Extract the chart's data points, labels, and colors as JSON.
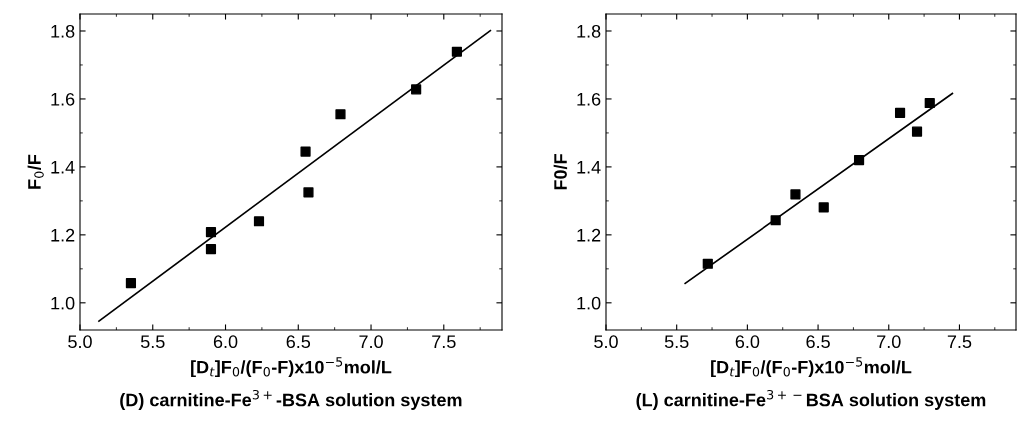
{
  "chart_data": [
    {
      "type": "scatter",
      "xlabel": "[D$_{t}$]F$_{0}$/(F$_{0}$-F)x10$^{−5}$mol/L",
      "ylabel": "F$_{0}$/F",
      "marker": "square",
      "xlim": [
        5.0,
        7.9
      ],
      "xticks": [
        {
          "value": 5,
          "label": "5.0"
        },
        5.5,
        {
          "value": 6,
          "label": "6.0"
        },
        6.5,
        {
          "value": 7,
          "label": "7.0"
        },
        7.5
      ],
      "ylim": [
        0.92,
        1.85
      ],
      "yticks": [
        {
          "value": 1,
          "label": "1.0"
        },
        1.2,
        1.4,
        1.6,
        1.8
      ],
      "annotations": [
        "(D) carnitine-Fe$^{3+}$-BSA solution system"
      ],
      "series": [
        {
          "color": "#000000",
          "x": [
            5.35,
            5.9,
            5.9,
            6.23,
            6.55,
            6.57,
            6.79,
            7.31,
            7.59
          ],
          "values": [
            1.058,
            1.208,
            1.158,
            1.24,
            1.445,
            1.325,
            1.555,
            1.628,
            1.739
          ]
        },
        {
          "type": "line",
          "color": "#000000",
          "marker": "none",
          "line_style": "solid",
          "x": [
            5.13,
            7.82
          ],
          "values": [
            0.946,
            1.801
          ]
        }
      ]
    },
    {
      "type": "scatter",
      "xlabel": "[D$_{t}$]F$_{0}$/(F$_{0}$-F)x10$^{−5}$mol/L",
      "ylabel": "F0/F",
      "marker": "square",
      "xlim": [
        5.0,
        7.9
      ],
      "xticks": [
        {
          "value": 5,
          "label": "5.0"
        },
        5.5,
        {
          "value": 6,
          "label": "6.0"
        },
        6.5,
        {
          "value": 7,
          "label": "7.0"
        },
        7.5
      ],
      "ylim": [
        0.92,
        1.85
      ],
      "yticks": [
        {
          "value": 1,
          "label": "1.0"
        },
        1.2,
        1.4,
        1.6,
        1.8
      ],
      "annotations": [
        "(L) carnitine-Fe$^{3+−}$BSA solution system"
      ],
      "series": [
        {
          "color": "#000000",
          "x": [
            5.72,
            6.2,
            6.34,
            6.54,
            6.79,
            7.08,
            7.2,
            7.29
          ],
          "values": [
            1.115,
            1.243,
            1.319,
            1.281,
            1.42,
            1.559,
            1.504,
            1.588
          ]
        },
        {
          "type": "line",
          "color": "#000000",
          "marker": "none",
          "line_style": "solid",
          "x": [
            5.56,
            7.45
          ],
          "values": [
            1.057,
            1.616
          ]
        }
      ]
    }
  ]
}
